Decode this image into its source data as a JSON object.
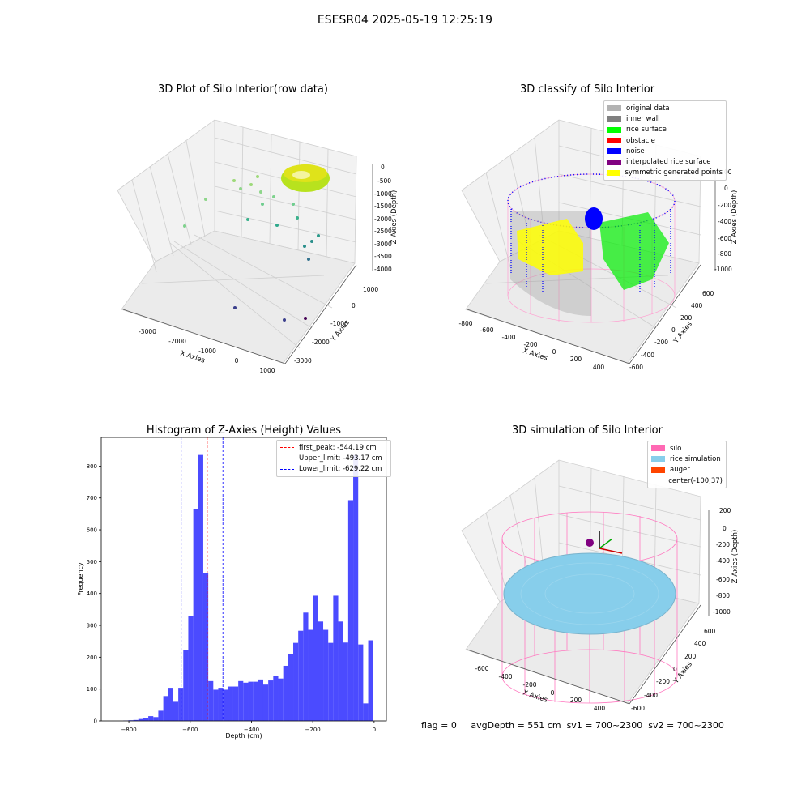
{
  "figure_title": "ESESR04 2025-05-19 12:25:19",
  "footer": {
    "flag": "flag = 0",
    "avg_depth": "avgDepth = 551 cm",
    "sv1": "sv1 = 700~2300",
    "sv2": "sv2 = 700~2300"
  },
  "colors": {
    "original_data": "#b3b3b3",
    "inner_wall": "#808080",
    "rice_surface": "#00ff00",
    "obstacle": "#ff0000",
    "noise": "#0000ff",
    "interpolated_rice_surface": "#800080",
    "symmetric_generated_points": "#ffff00",
    "silo": "#ff69b4",
    "rice_simulation": "#87ceeb",
    "auger": "#ff4500",
    "hist_bar": "#4b4bff"
  },
  "chart_data": [
    {
      "type": "scatter",
      "title": "3D Plot of Silo Interior(row data)",
      "xlabel": "X Axies",
      "ylabel": "Y Axies",
      "zlabel": "Z Axies (Depth)",
      "x_ticks": [
        "-3000",
        "-2000",
        "-1000",
        "0",
        "1000"
      ],
      "y_ticks": [
        "1000",
        "0",
        "-1000",
        "-2000",
        "-3000"
      ],
      "z_ticks": [
        "0",
        "-500",
        "-1000",
        "-1500",
        "-2000",
        "-2500",
        "-3000",
        "-3500",
        "-4000"
      ]
    },
    {
      "type": "scatter",
      "title": "3D classify of Silo Interior",
      "xlabel": "X Axies",
      "ylabel": "Y Axies",
      "zlabel": "Z Axies (Depth)",
      "x_ticks": [
        "-800",
        "-600",
        "-400",
        "-200",
        "0",
        "200",
        "400"
      ],
      "y_ticks": [
        "600",
        "400",
        "200",
        "0",
        "-200",
        "-400",
        "-600"
      ],
      "z_ticks": [
        "0",
        "-200",
        "-400",
        "-600",
        "-800",
        "-1000"
      ],
      "z_tick_top": "00",
      "legend": [
        "original data",
        "inner wall",
        "rice surface",
        "obstacle",
        "noise",
        "interpolated rice surface",
        "symmetric generated points"
      ]
    },
    {
      "type": "bar",
      "title": "Histogram of Z-Axies (Height) Values",
      "xlabel": "Depth (cm)",
      "ylabel": "Frequency",
      "xlim": [
        -890,
        40
      ],
      "ylim": [
        0,
        890
      ],
      "x_ticks": [
        -800,
        -600,
        -400,
        -200,
        0
      ],
      "y_ticks": [
        0,
        100,
        200,
        300,
        400,
        500,
        600,
        700,
        800
      ],
      "bin_width": 16.3,
      "bin_starts": [
        -818,
        -801.7,
        -785.4,
        -769.1,
        -752.8,
        -736.5,
        -720.2,
        -703.9,
        -687.6,
        -671.3,
        -655,
        -638.7,
        -622.4,
        -606.1,
        -589.8,
        -573.5,
        -557.2,
        -540.9,
        -524.6,
        -508.3,
        -492,
        -475.7,
        -459.4,
        -443.1,
        -426.8,
        -410.5,
        -394.2,
        -377.9,
        -361.6,
        -345.3,
        -329,
        -312.7,
        -296.4,
        -280.1,
        -263.8,
        -247.5,
        -231.2,
        -214.9,
        -198.6,
        -182.3,
        -166,
        -149.7,
        -133.4,
        -117.1,
        -100.8,
        -84.5,
        -68.2,
        -51.9,
        -35.6,
        -19.3
      ],
      "values": [
        1,
        2,
        3,
        6,
        10,
        15,
        12,
        32,
        78,
        104,
        60,
        104,
        222,
        330,
        665,
        835,
        463,
        125,
        98,
        104,
        98,
        108,
        108,
        125,
        120,
        123,
        123,
        130,
        114,
        127,
        140,
        133,
        173,
        210,
        245,
        283,
        340,
        286,
        393,
        312,
        286,
        245,
        393,
        312,
        246,
        693,
        835,
        240,
        55,
        253
      ],
      "lines": [
        {
          "label": "first_peak: -544.19 cm",
          "x": -544.19,
          "color": "#ff0000"
        },
        {
          "label": "Upper_limit: -493.17 cm",
          "x": -493.17,
          "color": "#0000ff"
        },
        {
          "label": "Lower_limit: -629.22 cm",
          "x": -629.22,
          "color": "#0000ff"
        }
      ]
    },
    {
      "type": "scatter",
      "title": "3D simulation of Silo Interior",
      "xlabel": "X Axies",
      "ylabel": "Y Axies",
      "zlabel": "Z Axies (Depth)",
      "x_ticks": [
        "-600",
        "-400",
        "-200",
        "0",
        "200",
        "400"
      ],
      "y_ticks": [
        "600",
        "400",
        "200",
        "0",
        "-200",
        "-400",
        "-600"
      ],
      "z_ticks": [
        "200",
        "0",
        "-200",
        "-400",
        "-600",
        "-800",
        "-1000"
      ],
      "legend": [
        "silo",
        "rice simulation",
        "auger",
        "center(-100,37)"
      ]
    }
  ]
}
